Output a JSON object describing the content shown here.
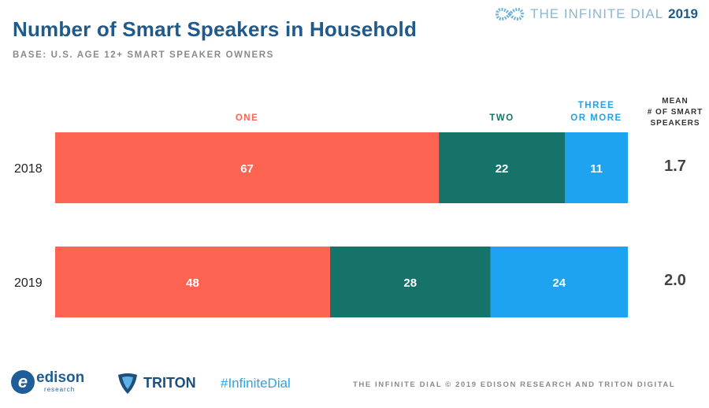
{
  "header": {
    "title": "Number of Smart Speakers in Household",
    "subtitle": "BASE: U.S. AGE 12+ SMART SPEAKER OWNERS",
    "brand_text": "THE INFINITE DIAL",
    "brand_year": "2019"
  },
  "footer": {
    "edison_word": "edison",
    "edison_sub": "research",
    "triton_word": "TRITON",
    "hashtag": "#InfiniteDial",
    "copyright": "THE INFINITE DIAL   © 2019 EDISON RESEARCH AND TRITON DIGITAL"
  },
  "chart_data": {
    "type": "bar",
    "orientation": "horizontal",
    "stacked": true,
    "categories": [
      "2018",
      "2019"
    ],
    "series": [
      {
        "name": "ONE",
        "values": [
          67,
          48
        ],
        "color": "#fd6552"
      },
      {
        "name": "TWO",
        "values": [
          22,
          28
        ],
        "color": "#16736a"
      },
      {
        "name": "THREE OR MORE",
        "values": [
          11,
          24
        ],
        "color": "#1da3f0"
      }
    ],
    "series_label_lines": [
      [
        "ONE"
      ],
      [
        "TWO"
      ],
      [
        "THREE",
        "OR MORE"
      ]
    ],
    "mean_header_lines": [
      "MEAN",
      "# OF SMART",
      "SPEAKERS"
    ],
    "mean_values": [
      "1.7",
      "2.0"
    ],
    "xlim": [
      0,
      100
    ],
    "grid": false,
    "legend": "top (labels above segments)"
  }
}
